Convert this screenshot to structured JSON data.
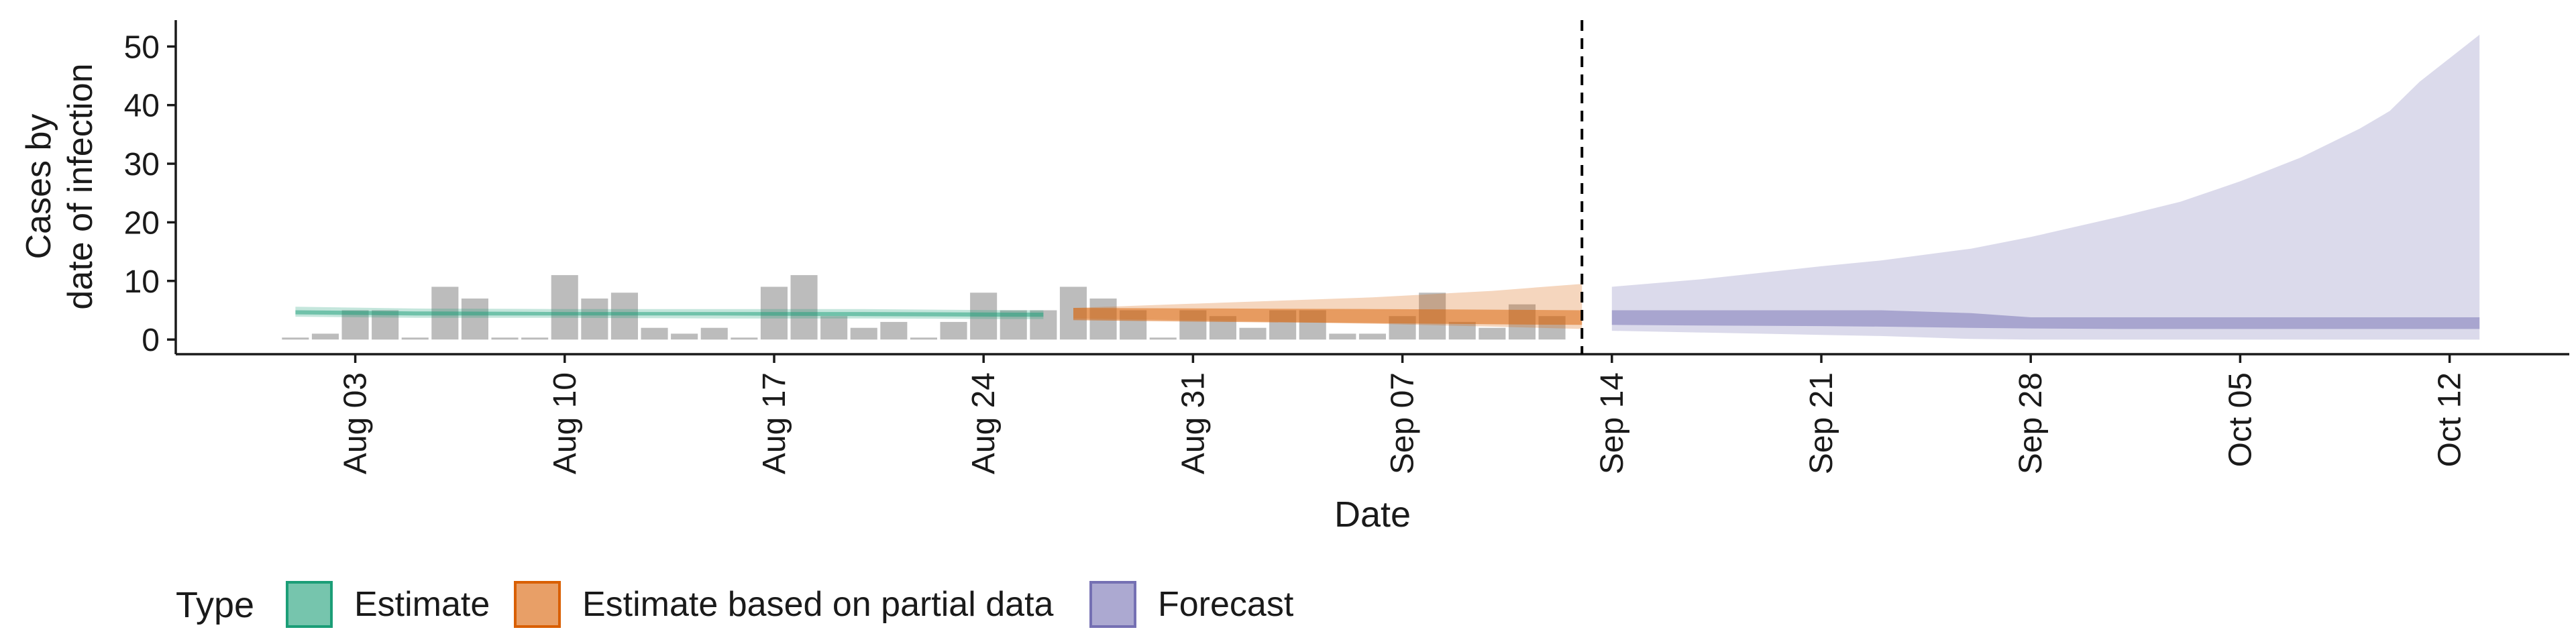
{
  "chart_data": {
    "type": "bar",
    "xlabel": "Date",
    "ylabel_lines": [
      "Cases by",
      "date of infection"
    ],
    "ylim": [
      -2.5,
      54.5
    ],
    "yticks": [
      0,
      10,
      20,
      30,
      40,
      50
    ],
    "xlim": [
      "2025-07-28",
      "2025-10-16"
    ],
    "xticks": [
      {
        "date": "2025-08-03",
        "label": "Aug 03"
      },
      {
        "date": "2025-08-10",
        "label": "Aug 10"
      },
      {
        "date": "2025-08-17",
        "label": "Aug 17"
      },
      {
        "date": "2025-08-24",
        "label": "Aug 24"
      },
      {
        "date": "2025-08-31",
        "label": "Aug 31"
      },
      {
        "date": "2025-09-07",
        "label": "Sep 07"
      },
      {
        "date": "2025-09-14",
        "label": "Sep 14"
      },
      {
        "date": "2025-09-21",
        "label": "Sep 21"
      },
      {
        "date": "2025-09-28",
        "label": "Sep 28"
      },
      {
        "date": "2025-10-05",
        "label": "Oct 05"
      },
      {
        "date": "2025-10-12",
        "label": "Oct 12"
      }
    ],
    "bars": {
      "start_date": "2025-08-01",
      "values": [
        0,
        1,
        5,
        5,
        0,
        9,
        7,
        0,
        0,
        11,
        7,
        8,
        2,
        1,
        2,
        0,
        9,
        11,
        4,
        2,
        3,
        0,
        3,
        8,
        5,
        5,
        9,
        7,
        5,
        0,
        5,
        4,
        2,
        5,
        5,
        1,
        1,
        4,
        8,
        3,
        2,
        6,
        4
      ],
      "color": "#a6a6a6"
    },
    "series": [
      {
        "name": "Estimate",
        "color": "#1b9e77",
        "x": [
          "2025-08-01",
          "2025-08-05",
          "2025-08-10",
          "2025-08-15",
          "2025-08-20",
          "2025-08-25",
          "2025-08-26"
        ],
        "outer_lower": [
          3.9,
          3.7,
          3.7,
          3.6,
          3.6,
          3.5,
          3.5
        ],
        "outer_upper": [
          5.6,
          5.3,
          5.2,
          5.2,
          5.2,
          5.0,
          5.0
        ],
        "inner_lower": [
          4.3,
          4.1,
          4.1,
          4.1,
          4.0,
          3.9,
          3.9
        ],
        "inner_upper": [
          5.0,
          4.8,
          4.7,
          4.7,
          4.7,
          4.6,
          4.6
        ]
      },
      {
        "name": "Estimate based on partial data",
        "color": "#d95f02",
        "x": [
          "2025-08-27",
          "2025-09-01",
          "2025-09-06",
          "2025-09-10",
          "2025-09-13"
        ],
        "outer_lower": [
          3.6,
          3.2,
          2.7,
          2.2,
          1.8
        ],
        "outer_upper": [
          5.4,
          6.3,
          7.2,
          8.3,
          9.5
        ],
        "inner_lower": [
          3.3,
          3.0,
          2.8,
          2.6,
          2.5
        ],
        "inner_upper": [
          5.4,
          5.3,
          5.2,
          5.1,
          5.0
        ]
      },
      {
        "name": "Forecast",
        "color": "#7570b3",
        "x": [
          "2025-09-14",
          "2025-09-17",
          "2025-09-21",
          "2025-09-23",
          "2025-09-26",
          "2025-09-28",
          "2025-10-01",
          "2025-10-03",
          "2025-10-05",
          "2025-10-07",
          "2025-10-09",
          "2025-10-10",
          "2025-10-11",
          "2025-10-13"
        ],
        "outer_lower": [
          1.5,
          1.2,
          0.8,
          0.6,
          0.1,
          0,
          0,
          0,
          0,
          0,
          0,
          0,
          0,
          0
        ],
        "outer_upper": [
          9.0,
          10.3,
          12.5,
          13.5,
          15.5,
          17.5,
          21.0,
          23.5,
          27.0,
          31.0,
          36.0,
          39.0,
          44.0,
          52.0
        ],
        "inner_lower": [
          2.5,
          2.4,
          2.3,
          2.2,
          2.0,
          1.9,
          1.8,
          1.8,
          1.8,
          1.8,
          1.8,
          1.8,
          1.8,
          1.8
        ],
        "inner_upper": [
          5.0,
          5.0,
          5.0,
          5.0,
          4.5,
          3.8,
          3.8,
          3.8,
          3.8,
          3.8,
          3.8,
          3.8,
          3.8,
          3.8
        ]
      }
    ],
    "vline_date": "2025-09-13",
    "legend": {
      "title": "Type",
      "placement": "bottom-left",
      "items": [
        "Estimate",
        "Estimate based on partial data",
        "Forecast"
      ]
    }
  }
}
